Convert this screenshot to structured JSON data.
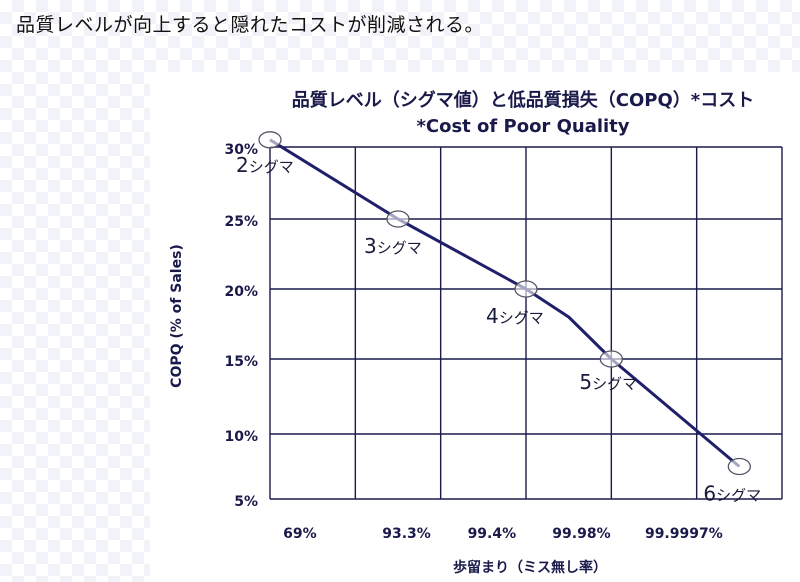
{
  "page": {
    "heading": "品質レベルが向上すると隠れたコストが削減される。"
  },
  "colors": {
    "line": "#1f1f6b",
    "grid": "#1a1a4a",
    "text": "#1a1a4a"
  },
  "chart_data": {
    "type": "line",
    "title": "品質レベル（シグマ値）と低品質損失（COPQ）*コスト",
    "subtitle": "*Cost of Poor Quality",
    "ylabel": "COPQ (% of Sales)",
    "xlabel": "歩留まり（ミス無し率）",
    "categories": [
      "69%",
      "93.3%",
      "99.4%",
      "99.98%",
      "99.9997%"
    ],
    "ylim": [
      5,
      30
    ],
    "yticks": [
      5,
      10,
      15,
      20,
      25,
      30
    ],
    "ytick_labels": [
      "5%",
      "10%",
      "15%",
      "20%",
      "25%",
      "30%"
    ],
    "grid": true,
    "series": [
      {
        "points": [
          {
            "x": 0.0,
            "y": 30.5
          },
          {
            "x": 1.5,
            "y": 25.0
          },
          {
            "x": 3.0,
            "y": 20.0
          },
          {
            "x": 3.5,
            "y": 18.0
          },
          {
            "x": 4.0,
            "y": 15.0
          },
          {
            "x": 5.5,
            "y": 7.5
          }
        ]
      }
    ],
    "annotations": [
      {
        "x": 0.0,
        "y": 30.5,
        "num": "2",
        "text": "シグマ"
      },
      {
        "x": 1.5,
        "y": 25.0,
        "num": "3",
        "text": "シグマ"
      },
      {
        "x": 3.0,
        "y": 20.0,
        "num": "4",
        "text": "シグマ"
      },
      {
        "x": 4.0,
        "y": 15.0,
        "num": "5",
        "text": "シグマ"
      },
      {
        "x": 5.5,
        "y": 7.5,
        "num": "6",
        "text": "シグマ"
      }
    ]
  }
}
